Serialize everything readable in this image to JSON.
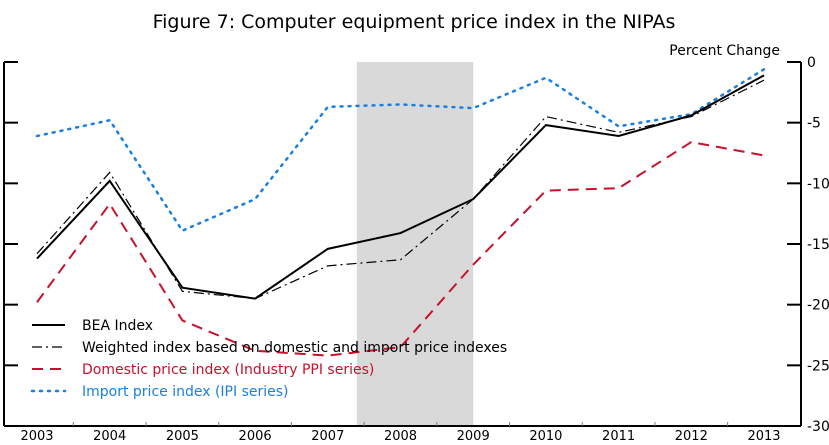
{
  "chart_data": {
    "type": "line",
    "title": "Figure 7: Computer equipment price index in the NIPAs",
    "ylabel": "Percent Change",
    "xlabel": "",
    "categories": [
      "2003",
      "2004",
      "2005",
      "2006",
      "2007",
      "2008",
      "2009",
      "2010",
      "2011",
      "2012",
      "2013"
    ],
    "ylim": [
      -30,
      0
    ],
    "yticks": [
      0,
      -5,
      -10,
      -15,
      -20,
      -25,
      -30
    ],
    "y_axis_side": "right",
    "grid": false,
    "legend_position": "bottom-left",
    "shaded_region": {
      "from": 2007.4,
      "to": 2009.0,
      "color": "#d9d9d9"
    },
    "series": [
      {
        "name": "BEA Index",
        "style": "solid",
        "color": "#000000",
        "values": [
          -16.2,
          -9.8,
          -18.6,
          -19.5,
          -15.4,
          -14.1,
          -11.3,
          -5.2,
          -6.1,
          -4.4,
          -1.1
        ]
      },
      {
        "name": "Weighted index based on domestic and import price indexes",
        "style": "dashdot",
        "color": "#000000",
        "values": [
          -15.8,
          -9.1,
          -18.9,
          -19.5,
          -16.8,
          -16.3,
          -11.3,
          -4.5,
          -5.8,
          -4.5,
          -1.5
        ]
      },
      {
        "name": "Domestic price index (Industry PPI series)",
        "style": "dashed",
        "color": "#c8102e",
        "values": [
          -19.8,
          -11.7,
          -21.3,
          -23.8,
          -24.2,
          -23.5,
          -16.7,
          -10.6,
          -10.4,
          -6.6,
          -7.7
        ]
      },
      {
        "name": "Import price index (IPI series)",
        "style": "dotted",
        "color": "#1a7fe0",
        "values": [
          -6.1,
          -4.8,
          -13.9,
          -11.3,
          -3.7,
          -3.5,
          -3.8,
          -1.3,
          -5.3,
          -4.3,
          -0.6
        ]
      }
    ]
  }
}
